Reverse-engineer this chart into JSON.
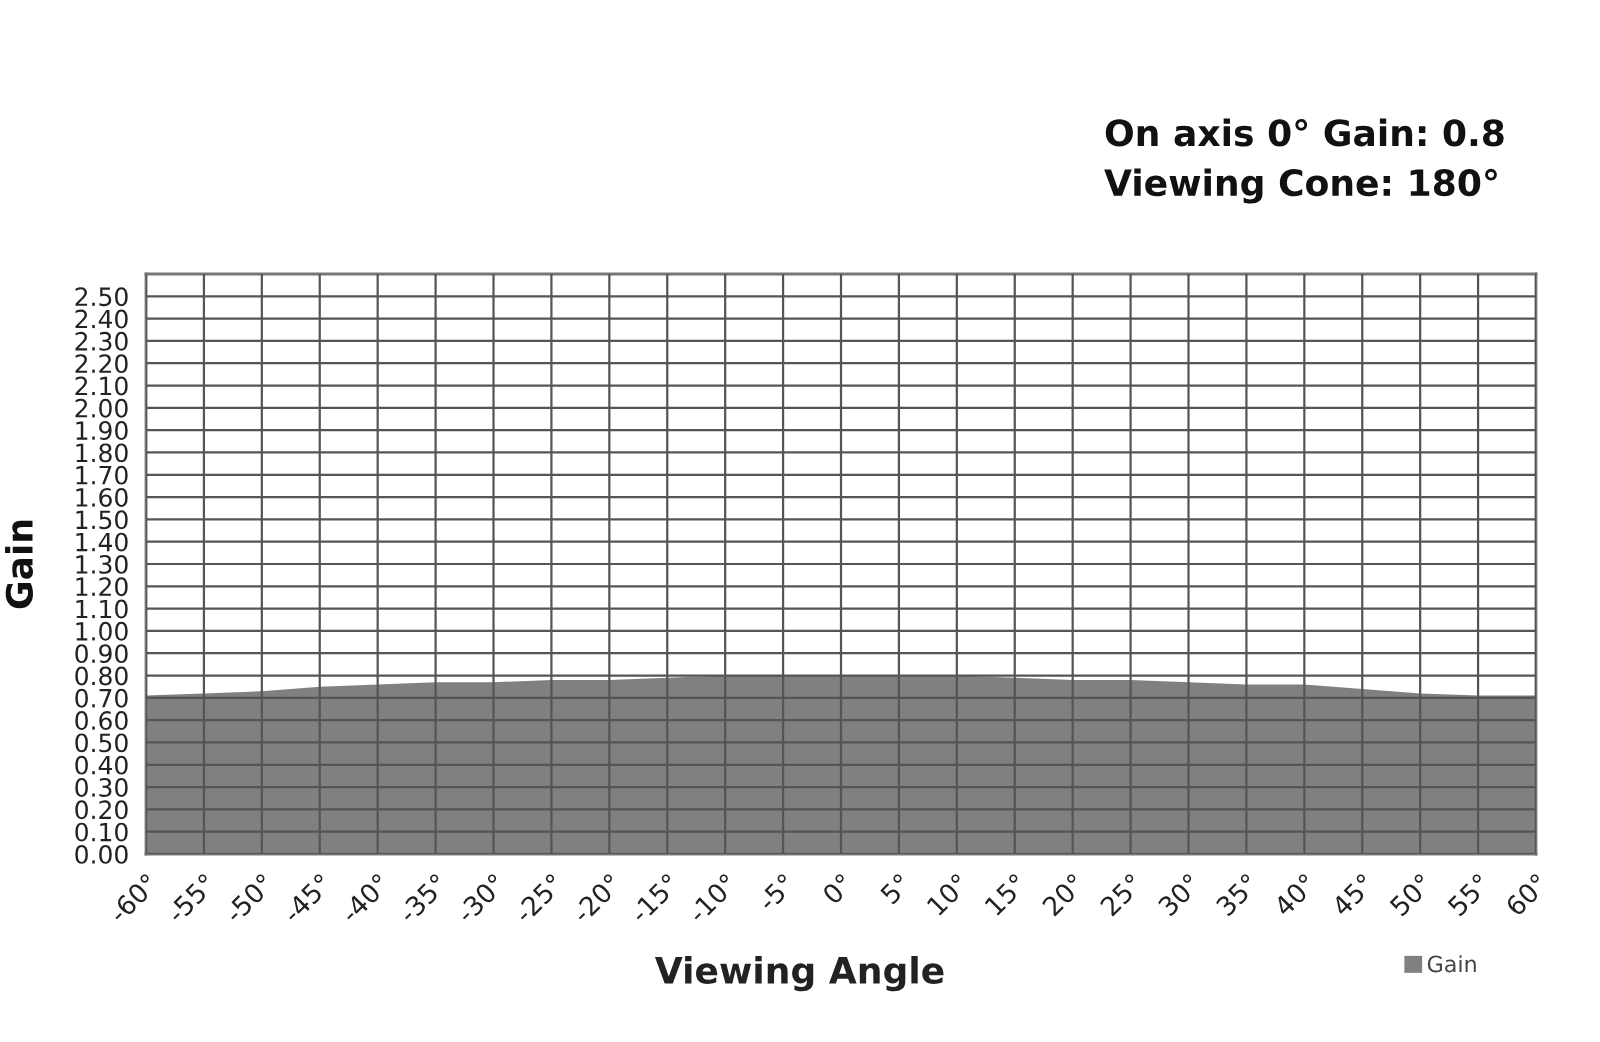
{
  "chart_data": {
    "type": "area",
    "xlabel": "Viewing Angle",
    "ylabel": "Gain",
    "annotations": [
      "On axis 0° Gain: 0.8",
      "Viewing Cone: 180°"
    ],
    "x": [
      -60,
      -55,
      -50,
      -45,
      -40,
      -35,
      -30,
      -25,
      -20,
      -15,
      -10,
      -5,
      0,
      5,
      10,
      15,
      20,
      25,
      30,
      35,
      40,
      45,
      50,
      55,
      60
    ],
    "series": [
      {
        "name": "Gain",
        "color": "#808080",
        "values": [
          0.71,
          0.72,
          0.73,
          0.75,
          0.76,
          0.77,
          0.77,
          0.78,
          0.78,
          0.79,
          0.8,
          0.8,
          0.8,
          0.8,
          0.8,
          0.79,
          0.78,
          0.78,
          0.77,
          0.76,
          0.76,
          0.74,
          0.72,
          0.71,
          0.71
        ]
      }
    ],
    "xlim": [
      -60,
      60
    ],
    "ylim": [
      0,
      2.6
    ],
    "xticks": [
      {
        "value": -60,
        "label": "-60°"
      },
      {
        "value": -55,
        "label": "-55°"
      },
      {
        "value": -50,
        "label": "-50°"
      },
      {
        "value": -45,
        "label": "-45°"
      },
      {
        "value": -40,
        "label": "-40°"
      },
      {
        "value": -35,
        "label": "-35°"
      },
      {
        "value": -30,
        "label": "-30°"
      },
      {
        "value": -25,
        "label": "-25°"
      },
      {
        "value": -20,
        "label": "-20°"
      },
      {
        "value": -15,
        "label": "-15°"
      },
      {
        "value": -10,
        "label": "-10°"
      },
      {
        "value": -5,
        "label": "-5°"
      },
      {
        "value": 0,
        "label": "0°"
      },
      {
        "value": 5,
        "label": "5°"
      },
      {
        "value": 10,
        "label": "10°"
      },
      {
        "value": 15,
        "label": "15°"
      },
      {
        "value": 20,
        "label": "20°"
      },
      {
        "value": 25,
        "label": "25°"
      },
      {
        "value": 30,
        "label": "30°"
      },
      {
        "value": 35,
        "label": "35°"
      },
      {
        "value": 40,
        "label": "40°"
      },
      {
        "value": 45,
        "label": "45°"
      },
      {
        "value": 50,
        "label": "50°"
      },
      {
        "value": 55,
        "label": "55°"
      },
      {
        "value": 60,
        "label": "60°"
      }
    ],
    "yticks": [
      {
        "value": 0,
        "label": "0.00"
      },
      {
        "value": 0.1,
        "label": "0.10"
      },
      {
        "value": 0.2,
        "label": "0.20"
      },
      {
        "value": 0.3,
        "label": "0.30"
      },
      {
        "value": 0.4,
        "label": "0.40"
      },
      {
        "value": 0.5,
        "label": "0.50"
      },
      {
        "value": 0.6,
        "label": "0.60"
      },
      {
        "value": 0.7,
        "label": "0.70"
      },
      {
        "value": 0.8,
        "label": "0.80"
      },
      {
        "value": 0.9,
        "label": "0.90"
      },
      {
        "value": 1.0,
        "label": "1.00"
      },
      {
        "value": 1.1,
        "label": "1.10"
      },
      {
        "value": 1.2,
        "label": "1.20"
      },
      {
        "value": 1.3,
        "label": "1.30"
      },
      {
        "value": 1.4,
        "label": "1.40"
      },
      {
        "value": 1.5,
        "label": "1.50"
      },
      {
        "value": 1.6,
        "label": "1.60"
      },
      {
        "value": 1.7,
        "label": "1.70"
      },
      {
        "value": 1.8,
        "label": "1.80"
      },
      {
        "value": 1.9,
        "label": "1.90"
      },
      {
        "value": 2.0,
        "label": "2.00"
      },
      {
        "value": 2.1,
        "label": "2.10"
      },
      {
        "value": 2.2,
        "label": "2.20"
      },
      {
        "value": 2.3,
        "label": "2.30"
      },
      {
        "value": 2.4,
        "label": "2.40"
      },
      {
        "value": 2.5,
        "label": "2.50"
      }
    ],
    "grid": true,
    "legend": "bottom right"
  }
}
